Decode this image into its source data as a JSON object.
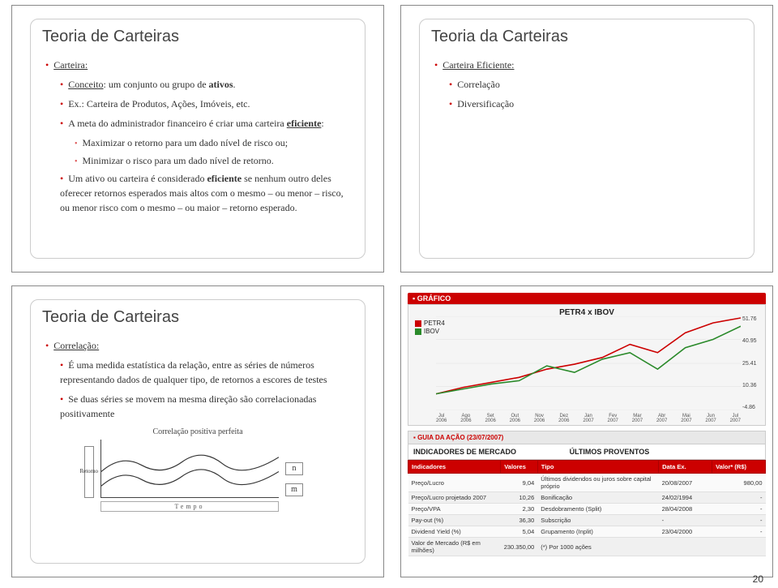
{
  "page_number": "20",
  "slide_tl": {
    "title": "Teoria de Carteiras",
    "b1": "Carteira:",
    "b1a": "Conceito: um conjunto ou grupo de ativos.",
    "b1b": "Ex.: Carteira de Produtos, Ações, Imóveis, etc.",
    "b1c": "A meta do administrador financeiro é criar uma carteira eficiente:",
    "b1c1": "Maximizar o retorno para um dado nível de risco ou;",
    "b1c2": "Minimizar o risco para um dado nível de retorno.",
    "b1d": "Um ativo ou carteira é considerado eficiente se nenhum outro deles oferecer retornos esperados mais altos com o mesmo – ou menor – risco, ou menor risco com o mesmo – ou maior – retorno esperado."
  },
  "slide_tr": {
    "title": "Teoria da Carteiras",
    "b1": "Carteira Eficiente:",
    "b1a": "Correlação",
    "b1b": "Diversificação"
  },
  "slide_bl": {
    "title": "Teoria de Carteiras",
    "b1": "Correlação:",
    "b1a": "É uma medida estatística da relação, entre as séries de números representando dados de qualquer tipo, de retornos a escores de testes",
    "b1b": "Se duas séries se movem na mesma direção são correlacionadas positivamente",
    "chart_caption": "Correlação positiva perfeita",
    "ylabel": "Retorno",
    "xlabel": "Tempo",
    "n": "n",
    "m": "m"
  },
  "slide_br": {
    "grafico": "GRÁFICO",
    "chart_title": "PETR4 x IBOV",
    "legend1": "PETR4",
    "legend2": "IBOV",
    "petr4": [
      5,
      9,
      12,
      15,
      20,
      23,
      27,
      35,
      30,
      42,
      48,
      51
    ],
    "ibov": [
      5,
      8,
      11,
      13,
      22,
      18,
      26,
      30,
      20,
      33,
      38,
      46
    ],
    "yticks": [
      "51.76",
      "40.95",
      "25.41",
      "10.36",
      "-4.86"
    ],
    "xticksTop": [
      "Jul",
      "Ago",
      "Set",
      "Out",
      "Nov",
      "Dez",
      "Jan",
      "Fev",
      "Mar",
      "Abr",
      "Mai",
      "Jun",
      "Jul"
    ],
    "xticksBot": [
      "2006",
      "2006",
      "2006",
      "2006",
      "2006",
      "2006",
      "2007",
      "2007",
      "2007",
      "2007",
      "2007",
      "2007",
      "2007"
    ],
    "guia": "GUIA DA AÇÃO (23/07/2007)",
    "ind_mercado": "INDICADORES DE MERCADO",
    "ult_prov": "ÚLTIMOS PROVENTOS",
    "th": [
      "Indicadores",
      "Valores",
      "Tipo",
      "Data Ex.",
      "Valor* (R$)"
    ],
    "rows": [
      [
        "Preço/Lucro",
        "9,04",
        "Últimos dividendos ou juros sobre capital próprio",
        "20/08/2007",
        "980,00"
      ],
      [
        "Preço/Lucro projetado 2007",
        "10,26",
        "Bonificação",
        "24/02/1994",
        "-"
      ],
      [
        "Preço/VPA",
        "2,30",
        "Desdobramento (Split)",
        "28/04/2008",
        "-"
      ],
      [
        "Pay-out (%)",
        "36,30",
        "Subscrição",
        "-",
        "-"
      ],
      [
        "Dividend Yield (%)",
        "5,04",
        "Grupamento (Inplit)",
        "23/04/2000",
        "-"
      ],
      [
        "Valor de Mercado (R$ em milhões)",
        "230.350,00",
        "(*) Por 1000 ações",
        "",
        ""
      ]
    ],
    "colors": {
      "petr4": "#cc0000",
      "ibov": "#2a8a2a",
      "header_bg": "#cc0000",
      "grid": "#e0e0e0"
    }
  }
}
